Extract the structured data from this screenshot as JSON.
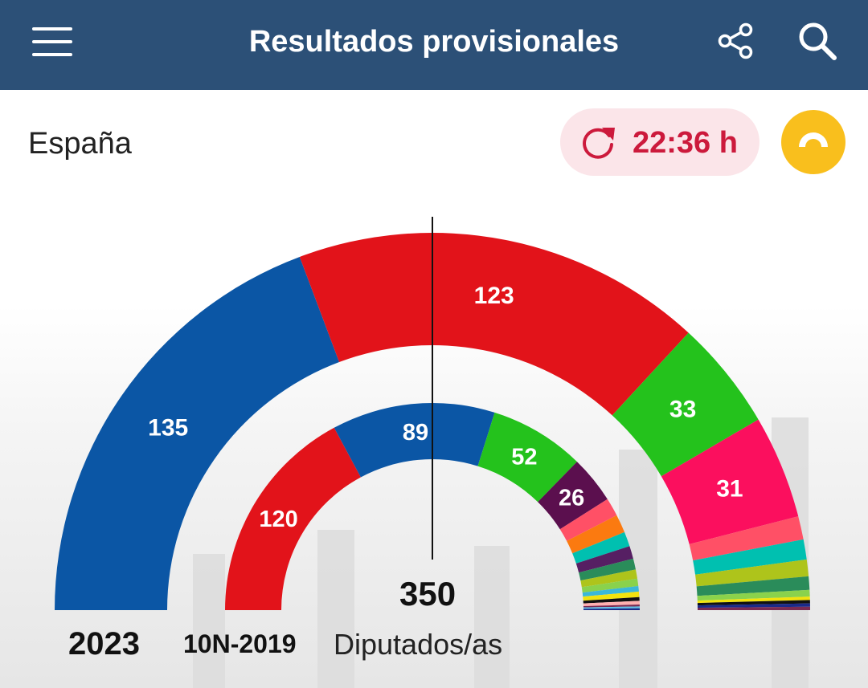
{
  "header": {
    "title": "Resultados provisionales",
    "icons": {
      "menu": "hamburger-menu-icon",
      "share": "share-icon",
      "search": "search-icon"
    }
  },
  "region": "España",
  "update": {
    "time": "22:36 h",
    "icon": "refresh-icon"
  },
  "yellow_button_icon": "semicircle-icon",
  "labels": {
    "current_year": "2023",
    "previous_election": "10N-2019",
    "total_seats": "350",
    "seats_unit": "Diputados/as"
  },
  "chart_data": [
    {
      "type": "pie",
      "name": "2023",
      "total": 350,
      "slices": [
        {
          "value": 135,
          "label": "135",
          "color": "#0b56a5"
        },
        {
          "value": 123,
          "label": "123",
          "color": "#e2131a"
        },
        {
          "value": 33,
          "label": "33",
          "color": "#24c21c"
        },
        {
          "value": 31,
          "label": "31",
          "color": "#fb0f5e"
        },
        {
          "value": 7,
          "label": "",
          "color": "#ff5066"
        },
        {
          "value": 6,
          "label": "",
          "color": "#00c0b0"
        },
        {
          "value": 5,
          "label": "",
          "color": "#aec41b"
        },
        {
          "value": 4,
          "label": "",
          "color": "#2a8c5a"
        },
        {
          "value": 2,
          "label": "",
          "color": "#8ad24c"
        },
        {
          "value": 1,
          "label": "",
          "color": "#f2e30e"
        },
        {
          "value": 1,
          "label": "",
          "color": "#111111"
        },
        {
          "value": 1,
          "label": "",
          "color": "#1a2a8a"
        },
        {
          "value": 1,
          "label": "",
          "color": "#7a2a52"
        }
      ]
    },
    {
      "type": "pie",
      "name": "10N-2019",
      "total": 350,
      "slices": [
        {
          "value": 120,
          "label": "120",
          "color": "#e2131a"
        },
        {
          "value": 89,
          "label": "89",
          "color": "#0b56a5"
        },
        {
          "value": 52,
          "label": "52",
          "color": "#24c21c"
        },
        {
          "value": 26,
          "label": "26",
          "color": "#5b0f4e"
        },
        {
          "value": 10,
          "label": "",
          "color": "#ff5066"
        },
        {
          "value": 10,
          "label": "",
          "color": "#fb7a10"
        },
        {
          "value": 8,
          "label": "",
          "color": "#00c0b0"
        },
        {
          "value": 7,
          "label": "",
          "color": "#561f63"
        },
        {
          "value": 6,
          "label": "",
          "color": "#2a8c5a"
        },
        {
          "value": 5,
          "label": "",
          "color": "#aec41b"
        },
        {
          "value": 4,
          "label": "",
          "color": "#8ad24c"
        },
        {
          "value": 3,
          "label": "",
          "color": "#3bb8d8"
        },
        {
          "value": 3,
          "label": "",
          "color": "#f2e30e"
        },
        {
          "value": 2,
          "label": "",
          "color": "#111111"
        },
        {
          "value": 2,
          "label": "",
          "color": "#ffb0b0"
        },
        {
          "value": 1,
          "label": "",
          "color": "#7a2a52"
        },
        {
          "value": 1,
          "label": "",
          "color": "#60c0e8"
        },
        {
          "value": 1,
          "label": "",
          "color": "#1a2a8a"
        }
      ]
    }
  ]
}
